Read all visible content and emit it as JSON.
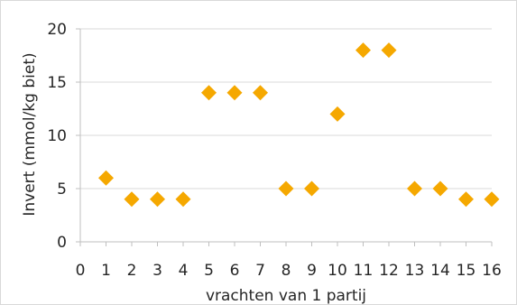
{
  "chart_data": {
    "type": "scatter",
    "xlabel": "vrachten van 1 partij",
    "ylabel": "Invert (mmol/kg biet)",
    "xlim": [
      0,
      16
    ],
    "ylim": [
      0,
      20
    ],
    "x_ticks": [
      0,
      1,
      2,
      3,
      4,
      5,
      6,
      7,
      8,
      9,
      10,
      11,
      12,
      13,
      14,
      15,
      16
    ],
    "y_ticks": [
      0,
      5,
      10,
      15,
      20
    ],
    "grid": "horizontal",
    "legend": "none",
    "marker": "diamond",
    "color": "#F5A800",
    "series": [
      {
        "x": [
          1,
          2,
          3,
          4,
          5,
          6,
          7,
          8,
          9,
          10,
          11,
          12,
          13,
          14,
          15,
          16
        ],
        "y": [
          6,
          4,
          4,
          4,
          14,
          14,
          14,
          5,
          5,
          12,
          18,
          18,
          5,
          5,
          4,
          4
        ]
      }
    ]
  }
}
